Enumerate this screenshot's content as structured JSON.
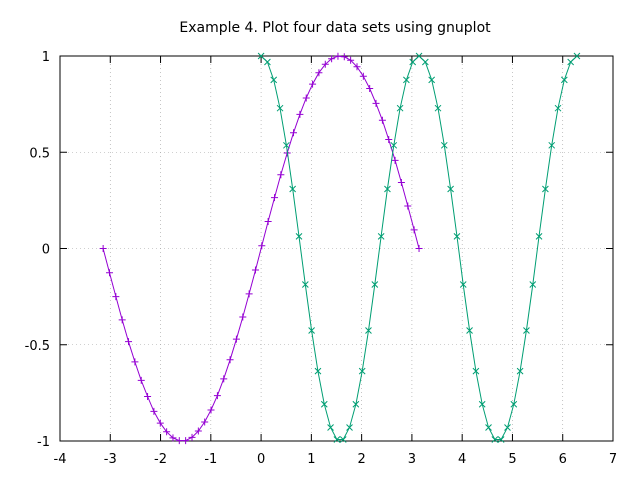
{
  "chart_data": {
    "type": "line",
    "title": "Example 4. Plot four data sets using gnuplot",
    "xlabel": "",
    "ylabel": "",
    "xlim": [
      -4,
      7
    ],
    "ylim": [
      -1,
      1
    ],
    "x_ticks": [
      "-4",
      "-3",
      "-2",
      "-1",
      "0",
      "1",
      "2",
      "3",
      "4",
      "5",
      "6",
      "7"
    ],
    "y_ticks": [
      "1",
      "0.5",
      "0",
      "-0.5",
      "-1"
    ],
    "grid": true,
    "legend": "none",
    "series": [
      {
        "color": "#9400d3",
        "marker": "plus",
        "x": [
          -3.142,
          -3.015,
          -2.889,
          -2.763,
          -2.637,
          -2.51,
          -2.384,
          -2.258,
          -2.132,
          -2.005,
          -1.879,
          -1.753,
          -1.627,
          -1.501,
          -1.374,
          -1.248,
          -1.122,
          -0.996,
          -0.869,
          -0.743,
          -0.617,
          -0.491,
          -0.364,
          -0.238,
          -0.112,
          0.014,
          0.14,
          0.267,
          0.393,
          0.519,
          0.645,
          0.772,
          0.898,
          1.024,
          1.15,
          1.277,
          1.403,
          1.529,
          1.655,
          1.781,
          1.908,
          2.034,
          2.16,
          2.286,
          2.413,
          2.539,
          2.665,
          2.791,
          2.918,
          3.044,
          3.142
        ],
        "y": [
          0.0,
          -0.126,
          -0.25,
          -0.371,
          -0.484,
          -0.589,
          -0.685,
          -0.769,
          -0.846,
          -0.907,
          -0.952,
          -0.984,
          -0.998,
          -0.998,
          -0.981,
          -0.948,
          -0.901,
          -0.839,
          -0.764,
          -0.677,
          -0.578,
          -0.471,
          -0.356,
          -0.236,
          -0.112,
          0.014,
          0.14,
          0.264,
          0.383,
          0.496,
          0.601,
          0.697,
          0.782,
          0.854,
          0.913,
          0.957,
          0.986,
          0.999,
          0.996,
          0.978,
          0.944,
          0.895,
          0.831,
          0.754,
          0.666,
          0.566,
          0.458,
          0.343,
          0.221,
          0.097,
          0.0
        ]
      },
      {
        "color": "#009e73",
        "marker": "cross",
        "x": [
          0.0,
          0.126,
          0.251,
          0.377,
          0.503,
          0.628,
          0.754,
          0.88,
          1.005,
          1.131,
          1.257,
          1.382,
          1.508,
          1.634,
          1.759,
          1.885,
          2.011,
          2.136,
          2.262,
          2.388,
          2.513,
          2.639,
          2.765,
          2.89,
          3.016,
          3.142,
          3.267,
          3.393,
          3.519,
          3.644,
          3.77,
          3.896,
          4.021,
          4.147,
          4.273,
          4.398,
          4.524,
          4.65,
          4.775,
          4.901,
          5.027,
          5.152,
          5.278,
          5.404,
          5.529,
          5.655,
          5.781,
          5.906,
          6.032,
          6.158,
          6.283
        ],
        "y": [
          1.0,
          0.969,
          0.876,
          0.729,
          0.536,
          0.309,
          0.063,
          -0.187,
          -0.426,
          -0.637,
          -0.809,
          -0.93,
          -0.992,
          -0.992,
          -0.93,
          -0.809,
          -0.637,
          -0.426,
          -0.187,
          0.063,
          0.309,
          0.536,
          0.729,
          0.876,
          0.969,
          1.0,
          0.969,
          0.876,
          0.729,
          0.536,
          0.309,
          0.063,
          -0.187,
          -0.426,
          -0.637,
          -0.809,
          -0.93,
          -0.992,
          -0.992,
          -0.93,
          -0.809,
          -0.637,
          -0.426,
          -0.187,
          0.063,
          0.309,
          0.536,
          0.729,
          0.876,
          0.969,
          1.0
        ]
      }
    ]
  }
}
